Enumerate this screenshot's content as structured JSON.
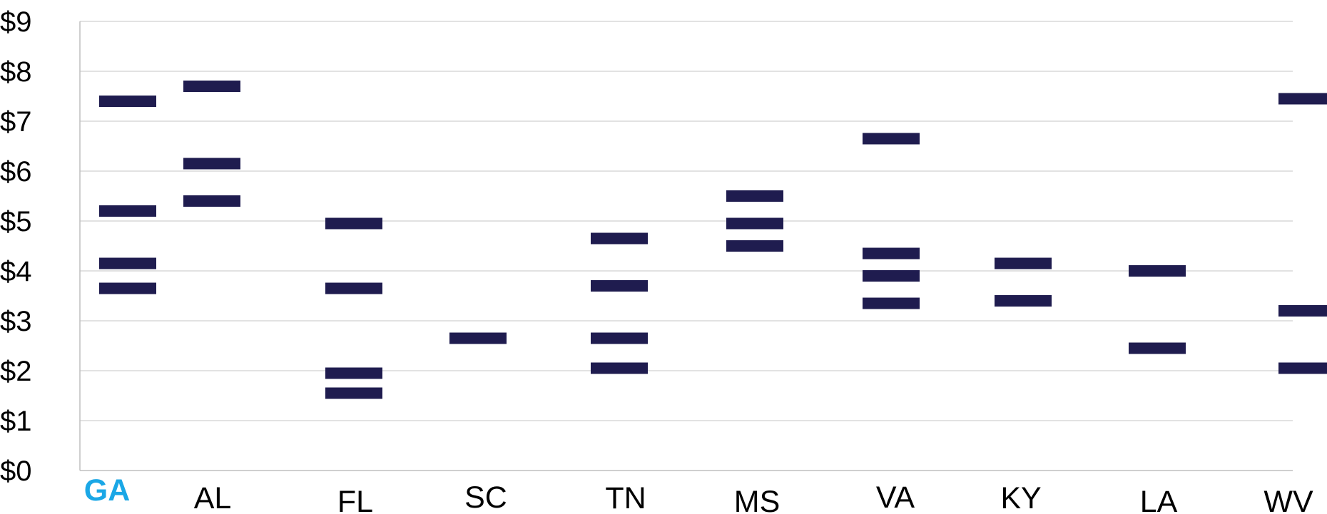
{
  "chart_data": {
    "type": "scatter",
    "marker": "dash",
    "marker_color": "#1f1c4f",
    "highlight_color": "#1aa7e6",
    "highlight_category": "GA",
    "title": "",
    "xlabel": "",
    "ylabel": "",
    "ylim": [
      0,
      9
    ],
    "y_ticks": [
      "$0",
      "$1",
      "$2",
      "$3",
      "$4",
      "$5",
      "$6",
      "$7",
      "$8",
      "$9"
    ],
    "grid": true,
    "categories": [
      "GA",
      "AL",
      "FL",
      "SC",
      "TN",
      "MS",
      "VA",
      "KY",
      "LA",
      "WV"
    ],
    "points": [
      {
        "category": "GA",
        "values": [
          7.4,
          5.2,
          4.15,
          3.65
        ]
      },
      {
        "category": "AL",
        "values": [
          7.7,
          6.15,
          5.4
        ]
      },
      {
        "category": "FL",
        "values": [
          4.95,
          3.65,
          1.95,
          1.55
        ]
      },
      {
        "category": "SC",
        "values": [
          2.65
        ]
      },
      {
        "category": "TN",
        "values": [
          4.65,
          3.7,
          2.65,
          2.05
        ]
      },
      {
        "category": "MS",
        "values": [
          5.5,
          4.95,
          4.5
        ]
      },
      {
        "category": "VA",
        "values": [
          6.65,
          4.35,
          3.9,
          3.35
        ]
      },
      {
        "category": "KY",
        "values": [
          4.15,
          3.4
        ]
      },
      {
        "category": "LA",
        "values": [
          4.0,
          2.45
        ]
      },
      {
        "category": "WV",
        "values": [
          7.45,
          3.2,
          2.05
        ]
      }
    ]
  }
}
